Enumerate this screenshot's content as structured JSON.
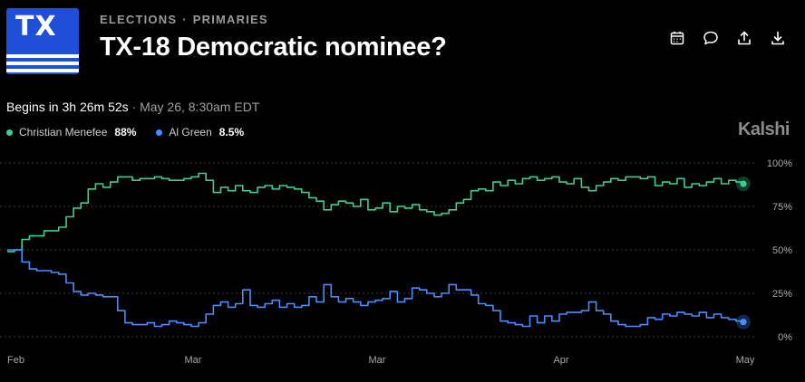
{
  "logo": {
    "text": "TX",
    "color": "#1f4fd8"
  },
  "header": {
    "breadcrumb": [
      "ELECTIONS",
      "PRIMARIES"
    ],
    "separator": "·",
    "title": "TX-18 Democratic nominee?"
  },
  "toolbar": {
    "icons": [
      "calendar-icon",
      "comment-icon",
      "share-icon",
      "download-icon"
    ]
  },
  "timing": {
    "countdown": "Begins in 3h 26m 52s",
    "schedule": " · May 26, 8:30am EDT"
  },
  "brand": "Kalshi",
  "legend": [
    {
      "name": "Christian Menefee",
      "value": "88%",
      "color": "#3ecf8e"
    },
    {
      "name": "Al Green",
      "value": "8.5%",
      "color": "#4a8cff"
    }
  ],
  "chart_data": {
    "type": "line",
    "title": "",
    "xlabel": "",
    "ylabel": "",
    "ylim": [
      0,
      100
    ],
    "y_ticks": [
      {
        "value": 100,
        "label": "100%"
      },
      {
        "value": 75,
        "label": "75%"
      },
      {
        "value": 50,
        "label": "50%"
      },
      {
        "value": 25,
        "label": "25%"
      },
      {
        "value": 0,
        "label": "0%"
      }
    ],
    "x_range": [
      0,
      100
    ],
    "x_ticks": [
      {
        "value": 0,
        "label": "Feb"
      },
      {
        "value": 25,
        "label": "Mar"
      },
      {
        "value": 50,
        "label": "Mar"
      },
      {
        "value": 75,
        "label": "Apr"
      },
      {
        "value": 100,
        "label": "May"
      }
    ],
    "grid": true,
    "legend_position": "top-left",
    "series": [
      {
        "name": "Christian Menefee",
        "color": "#3ecf8e",
        "points": [
          [
            0,
            49
          ],
          [
            1,
            50
          ],
          [
            2,
            56
          ],
          [
            3,
            58
          ],
          [
            5,
            61
          ],
          [
            7,
            63
          ],
          [
            8,
            69
          ],
          [
            9,
            74
          ],
          [
            10,
            77
          ],
          [
            11,
            85
          ],
          [
            12,
            88
          ],
          [
            13,
            86
          ],
          [
            14,
            89
          ],
          [
            15,
            92
          ],
          [
            16,
            92
          ],
          [
            17,
            90
          ],
          [
            18,
            91
          ],
          [
            19,
            91
          ],
          [
            20,
            92
          ],
          [
            21,
            91
          ],
          [
            22,
            90
          ],
          [
            24,
            91
          ],
          [
            25,
            92
          ],
          [
            26,
            94
          ],
          [
            27,
            90
          ],
          [
            28,
            83
          ],
          [
            29,
            86
          ],
          [
            30,
            84
          ],
          [
            31,
            87
          ],
          [
            32,
            84
          ],
          [
            33,
            83
          ],
          [
            34,
            86
          ],
          [
            35,
            87
          ],
          [
            36,
            85
          ],
          [
            37,
            87
          ],
          [
            38,
            86
          ],
          [
            39,
            85
          ],
          [
            40,
            83
          ],
          [
            41,
            80
          ],
          [
            42,
            78
          ],
          [
            43,
            73
          ],
          [
            44,
            76
          ],
          [
            45,
            78
          ],
          [
            46,
            77
          ],
          [
            47,
            75
          ],
          [
            48,
            79
          ],
          [
            49,
            73
          ],
          [
            50,
            74
          ],
          [
            51,
            77
          ],
          [
            52,
            72
          ],
          [
            53,
            75
          ],
          [
            54,
            74
          ],
          [
            55,
            76
          ],
          [
            56,
            73
          ],
          [
            57,
            72
          ],
          [
            58,
            70
          ],
          [
            59,
            71
          ],
          [
            60,
            73
          ],
          [
            61,
            77
          ],
          [
            62,
            79
          ],
          [
            63,
            84
          ],
          [
            64,
            85
          ],
          [
            65,
            84
          ],
          [
            66,
            89
          ],
          [
            67,
            87
          ],
          [
            68,
            90
          ],
          [
            69,
            88
          ],
          [
            70,
            91
          ],
          [
            71,
            92
          ],
          [
            72,
            90
          ],
          [
            73,
            91
          ],
          [
            74,
            92
          ],
          [
            75,
            89
          ],
          [
            76,
            88
          ],
          [
            77,
            91
          ],
          [
            78,
            86
          ],
          [
            79,
            84
          ],
          [
            80,
            87
          ],
          [
            81,
            89
          ],
          [
            82,
            91
          ],
          [
            83,
            90
          ],
          [
            84,
            92
          ],
          [
            85,
            92
          ],
          [
            86,
            91
          ],
          [
            87,
            92
          ],
          [
            88,
            87
          ],
          [
            89,
            89
          ],
          [
            90,
            88
          ],
          [
            91,
            91
          ],
          [
            92,
            86
          ],
          [
            93,
            88
          ],
          [
            94,
            87
          ],
          [
            95,
            89
          ],
          [
            96,
            91
          ],
          [
            97,
            88
          ],
          [
            98,
            90
          ],
          [
            99,
            89
          ],
          [
            100,
            88
          ]
        ]
      },
      {
        "name": "Al Green",
        "color": "#4a8cff",
        "points": [
          [
            0,
            50
          ],
          [
            1,
            50
          ],
          [
            2,
            43
          ],
          [
            3,
            39
          ],
          [
            4,
            38
          ],
          [
            5,
            38
          ],
          [
            6,
            37
          ],
          [
            7,
            36
          ],
          [
            8,
            31
          ],
          [
            9,
            26
          ],
          [
            10,
            24
          ],
          [
            11,
            25
          ],
          [
            12,
            24
          ],
          [
            13,
            23
          ],
          [
            14,
            23
          ],
          [
            15,
            15
          ],
          [
            16,
            8
          ],
          [
            17,
            7
          ],
          [
            18,
            7
          ],
          [
            19,
            8
          ],
          [
            20,
            6
          ],
          [
            21,
            7
          ],
          [
            22,
            9
          ],
          [
            23,
            8
          ],
          [
            24,
            7
          ],
          [
            25,
            6
          ],
          [
            26,
            8
          ],
          [
            27,
            13
          ],
          [
            28,
            18
          ],
          [
            29,
            20
          ],
          [
            30,
            17
          ],
          [
            31,
            19
          ],
          [
            32,
            27
          ],
          [
            33,
            18
          ],
          [
            34,
            17
          ],
          [
            35,
            19
          ],
          [
            36,
            21
          ],
          [
            37,
            17
          ],
          [
            38,
            19
          ],
          [
            39,
            17
          ],
          [
            40,
            18
          ],
          [
            41,
            23
          ],
          [
            42,
            20
          ],
          [
            43,
            30
          ],
          [
            44,
            23
          ],
          [
            45,
            20
          ],
          [
            46,
            22
          ],
          [
            47,
            20
          ],
          [
            48,
            18
          ],
          [
            49,
            20
          ],
          [
            50,
            21
          ],
          [
            51,
            22
          ],
          [
            52,
            26
          ],
          [
            53,
            20
          ],
          [
            54,
            22
          ],
          [
            55,
            28
          ],
          [
            56,
            27
          ],
          [
            57,
            25
          ],
          [
            58,
            23
          ],
          [
            59,
            25
          ],
          [
            60,
            30
          ],
          [
            61,
            27
          ],
          [
            62,
            27
          ],
          [
            63,
            24
          ],
          [
            64,
            19
          ],
          [
            65,
            18
          ],
          [
            66,
            15
          ],
          [
            67,
            9
          ],
          [
            68,
            8
          ],
          [
            69,
            7
          ],
          [
            70,
            6
          ],
          [
            71,
            12
          ],
          [
            72,
            8
          ],
          [
            73,
            12
          ],
          [
            74,
            9
          ],
          [
            75,
            13
          ],
          [
            76,
            14
          ],
          [
            77,
            14
          ],
          [
            78,
            15
          ],
          [
            79,
            20
          ],
          [
            80,
            15
          ],
          [
            81,
            13
          ],
          [
            82,
            9
          ],
          [
            83,
            7
          ],
          [
            84,
            6
          ],
          [
            85,
            6
          ],
          [
            86,
            7
          ],
          [
            87,
            11
          ],
          [
            88,
            10
          ],
          [
            89,
            13
          ],
          [
            90,
            12
          ],
          [
            91,
            14
          ],
          [
            92,
            13
          ],
          [
            93,
            12
          ],
          [
            94,
            14
          ],
          [
            95,
            11
          ],
          [
            96,
            13
          ],
          [
            97,
            11
          ],
          [
            98,
            10
          ],
          [
            99,
            9
          ],
          [
            100,
            8.5
          ]
        ]
      }
    ]
  }
}
